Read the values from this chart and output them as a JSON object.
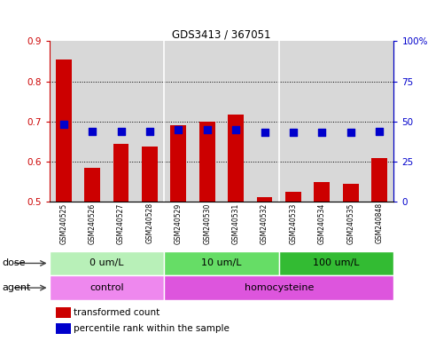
{
  "title": "GDS3413 / 367051",
  "samples": [
    "GSM240525",
    "GSM240526",
    "GSM240527",
    "GSM240528",
    "GSM240529",
    "GSM240530",
    "GSM240531",
    "GSM240532",
    "GSM240533",
    "GSM240534",
    "GSM240535",
    "GSM240848"
  ],
  "transformed_count": [
    0.855,
    0.585,
    0.645,
    0.638,
    0.69,
    0.7,
    0.718,
    0.512,
    0.525,
    0.548,
    0.545,
    0.608
  ],
  "percentile_rank": [
    48,
    44,
    44,
    44,
    45,
    45,
    45,
    43,
    43,
    43,
    43,
    44
  ],
  "ylim_left": [
    0.5,
    0.9
  ],
  "ylim_right": [
    0,
    100
  ],
  "yticks_left": [
    0.5,
    0.6,
    0.7,
    0.8,
    0.9
  ],
  "yticks_right": [
    0,
    25,
    50,
    75,
    100
  ],
  "ytick_labels_right": [
    "0",
    "25",
    "50",
    "75",
    "100%"
  ],
  "bar_color": "#cc0000",
  "dot_color": "#0000cc",
  "dose_groups": [
    {
      "label": "0 um/L",
      "start": 0,
      "end": 4,
      "color": "#b8f0b8"
    },
    {
      "label": "10 um/L",
      "start": 4,
      "end": 8,
      "color": "#66dd66"
    },
    {
      "label": "100 um/L",
      "start": 8,
      "end": 12,
      "color": "#33bb33"
    }
  ],
  "agent_groups": [
    {
      "label": "control",
      "start": 0,
      "end": 4,
      "color": "#ee88ee"
    },
    {
      "label": "homocysteine",
      "start": 4,
      "end": 12,
      "color": "#dd55dd"
    }
  ],
  "legend_bar_label": "transformed count",
  "legend_dot_label": "percentile rank within the sample",
  "label_dose": "dose",
  "label_agent": "agent",
  "bar_bottom": 0.5,
  "dot_size": 28,
  "plot_bg_color": "#d8d8d8",
  "col_sep_color": "#ffffff",
  "group_border_color": "#000000"
}
